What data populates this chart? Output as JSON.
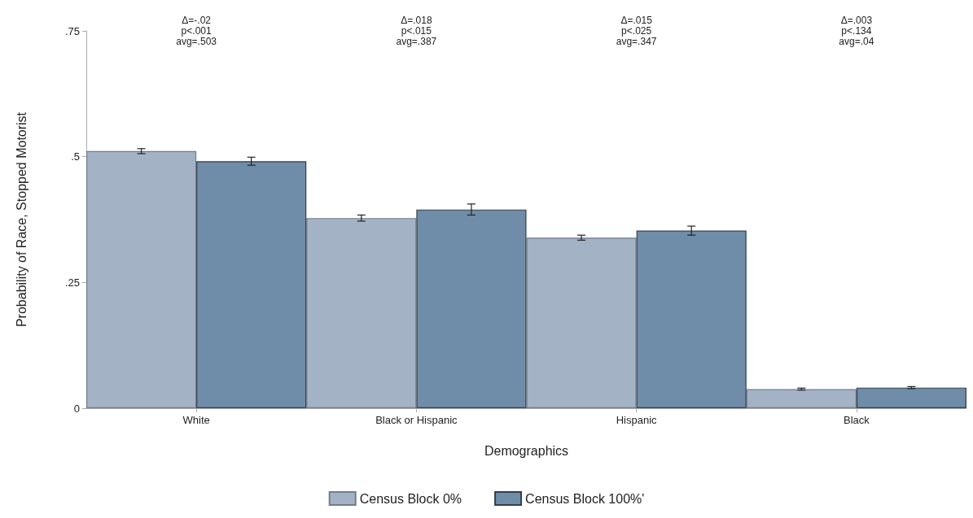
{
  "chart_data": {
    "type": "bar",
    "xlabel": "Demographics",
    "ylabel": "Probability of Race, Stopped Motorist",
    "categories": [
      "White",
      "Black or Hispanic",
      "Hispanic",
      "Black"
    ],
    "series": [
      {
        "name": "Census Block 0%",
        "color": "#a3b3c5",
        "values": [
          0.511,
          0.378,
          0.339,
          0.038
        ],
        "errors": [
          0.005,
          0.006,
          0.005,
          0.002
        ]
      },
      {
        "name": "Census Block 100%'",
        "color": "#6f8ca8",
        "values": [
          0.491,
          0.395,
          0.353,
          0.041
        ],
        "errors": [
          0.008,
          0.011,
          0.009,
          0.002
        ]
      }
    ],
    "ylim": [
      0,
      0.75
    ],
    "yticks": [
      {
        "value": 0,
        "label": "0"
      },
      {
        "value": 0.25,
        "label": ".25"
      },
      {
        "value": 0.5,
        "label": ".5"
      },
      {
        "value": 0.75,
        "label": ".75"
      }
    ],
    "annotations": [
      "Δ=-.02\np<.001\navg=.503",
      "Δ=.018\np<.015\navg=.387",
      "Δ=.015\np<.025\navg=.347",
      "Δ=.003\np<.134\navg=.04"
    ],
    "grid": false,
    "legend": "bottom"
  }
}
